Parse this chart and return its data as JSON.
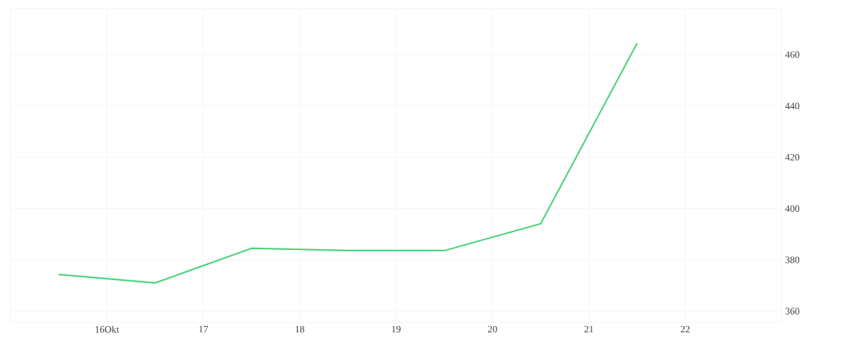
{
  "chart_data": {
    "type": "line",
    "x": [
      15.5,
      16.5,
      17.5,
      18.5,
      19.5,
      20.5,
      21.5
    ],
    "series": [
      {
        "color": "#4cd47a",
        "values": [
          374.3,
          371.0,
          384.5,
          383.6,
          383.6,
          394.1,
          464.4
        ]
      }
    ],
    "xlim": [
      15,
      23
    ],
    "ylim": [
      355.6,
      478
    ],
    "xticks": [
      {
        "value": 16,
        "label": "16Okt"
      },
      17,
      18,
      19,
      20,
      21,
      22
    ],
    "yticks": [
      360,
      380,
      400,
      420,
      440,
      460
    ],
    "grid": true,
    "marker": "none",
    "line_style": "solid"
  }
}
